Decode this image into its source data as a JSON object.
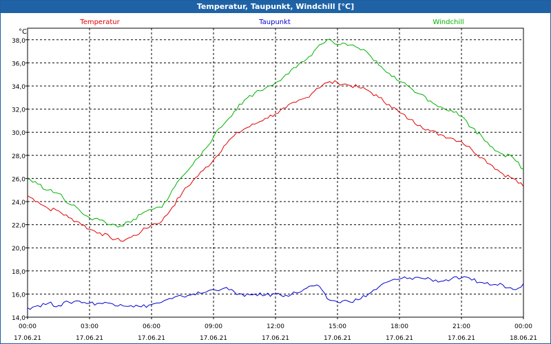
{
  "window": {
    "title": "Temperatur, Taupunkt, Windchill [°C]"
  },
  "chart_data": {
    "type": "line",
    "title": "Temperatur, Taupunkt, Windchill [°C]",
    "ylabel": "°C",
    "ylim": [
      14.0,
      39.0
    ],
    "yticks": [
      "14,0",
      "16,0",
      "18,0",
      "20,0",
      "22,0",
      "24,0",
      "26,0",
      "28,0",
      "30,0",
      "32,0",
      "34,0",
      "36,0",
      "38,0"
    ],
    "xlim": [
      "17.06.21 00:00",
      "18.06.21 00:00"
    ],
    "xticks": [
      {
        "time": "00:00",
        "date": "17.06.21"
      },
      {
        "time": "03:00",
        "date": "17.06.21"
      },
      {
        "time": "06:00",
        "date": "17.06.21"
      },
      {
        "time": "09:00",
        "date": "17.06.21"
      },
      {
        "time": "12:00",
        "date": "17.06.21"
      },
      {
        "time": "15:00",
        "date": "17.06.21"
      },
      {
        "time": "18:00",
        "date": "17.06.21"
      },
      {
        "time": "21:00",
        "date": "17.06.21"
      },
      {
        "time": "00:00",
        "date": "18.06.21"
      }
    ],
    "grid": true,
    "legend": "top",
    "x": [
      "00:00",
      "00:30",
      "01:00",
      "01:30",
      "02:00",
      "02:30",
      "03:00",
      "03:30",
      "04:00",
      "04:30",
      "05:00",
      "05:30",
      "06:00",
      "06:30",
      "07:00",
      "07:30",
      "08:00",
      "08:30",
      "09:00",
      "09:30",
      "10:00",
      "10:30",
      "11:00",
      "11:30",
      "12:00",
      "12:30",
      "13:00",
      "13:30",
      "14:00",
      "14:30",
      "15:00",
      "15:30",
      "16:00",
      "16:30",
      "17:00",
      "17:30",
      "18:00",
      "18:30",
      "19:00",
      "19:30",
      "20:00",
      "20:30",
      "21:00",
      "21:30",
      "22:00",
      "22:30",
      "23:00",
      "23:30",
      "24:00"
    ],
    "series": [
      {
        "name": "Temperatur",
        "color": "#e00000",
        "values": [
          24.5,
          24.0,
          23.4,
          23.2,
          22.6,
          22.2,
          21.6,
          21.3,
          20.9,
          20.6,
          20.9,
          21.4,
          22.0,
          22.3,
          23.5,
          24.8,
          25.8,
          26.7,
          27.6,
          28.8,
          29.7,
          30.3,
          30.7,
          31.2,
          31.6,
          32.1,
          32.6,
          33.0,
          33.8,
          34.3,
          34.3,
          34.1,
          33.9,
          33.6,
          33.0,
          32.4,
          31.7,
          31.1,
          30.6,
          30.1,
          29.8,
          29.5,
          29.2,
          28.5,
          27.8,
          27.1,
          26.4,
          26.0,
          25.3
        ]
      },
      {
        "name": "Taupunkt",
        "color": "#0000d0",
        "values": [
          14.8,
          15.0,
          15.2,
          15.0,
          15.3,
          15.4,
          15.2,
          15.2,
          15.2,
          15.1,
          15.0,
          14.9,
          15.1,
          15.3,
          15.6,
          15.8,
          16.0,
          16.1,
          16.4,
          16.5,
          16.2,
          15.8,
          16.0,
          15.9,
          16.0,
          15.9,
          16.1,
          16.5,
          16.8,
          15.6,
          15.3,
          15.4,
          15.5,
          16.0,
          16.6,
          17.1,
          17.3,
          17.4,
          17.4,
          17.3,
          17.1,
          17.3,
          17.4,
          17.2,
          17.0,
          16.8,
          16.8,
          16.4,
          16.9
        ]
      },
      {
        "name": "Windchill",
        "color": "#00b000",
        "values": [
          26.0,
          25.5,
          25.0,
          24.7,
          23.8,
          23.3,
          22.6,
          22.4,
          22.0,
          21.9,
          22.2,
          22.9,
          23.3,
          23.5,
          25.0,
          26.2,
          27.2,
          28.4,
          29.6,
          30.7,
          31.8,
          32.8,
          33.4,
          33.8,
          34.3,
          35.0,
          35.6,
          36.3,
          37.3,
          38.0,
          37.6,
          37.5,
          37.3,
          36.8,
          35.8,
          35.1,
          34.4,
          33.9,
          33.3,
          32.7,
          32.2,
          31.9,
          31.4,
          30.4,
          29.6,
          28.7,
          28.1,
          27.8,
          26.8
        ]
      }
    ]
  }
}
